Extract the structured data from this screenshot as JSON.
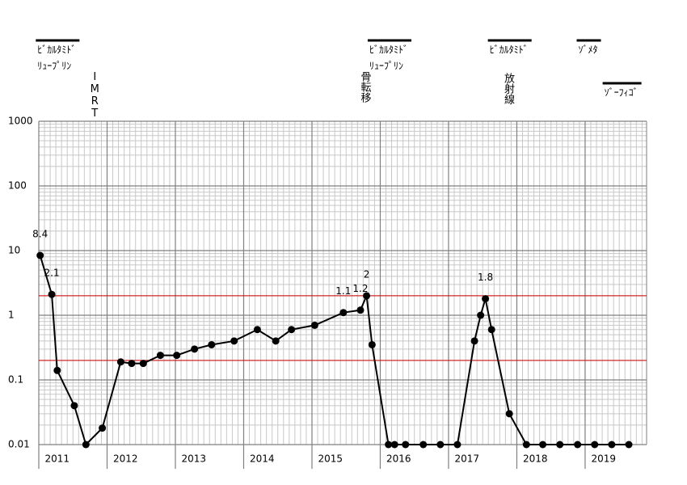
{
  "chart_data": {
    "type": "line",
    "log_scale": true,
    "grid": true,
    "color": "#000000",
    "reference_lines": [
      2,
      0.2
    ],
    "reference_color": "#d00000",
    "xlim": [
      2011,
      2019.9
    ],
    "xticks": [
      2011,
      2012,
      2013,
      2014,
      2015,
      2016,
      2017,
      2018,
      2019
    ],
    "ylim": [
      0.01,
      1000
    ],
    "yticks": [
      1000,
      100,
      10,
      1,
      0.1,
      0.01
    ],
    "x": [
      2011.02,
      2011.19,
      2011.27,
      2011.52,
      2011.69,
      2011.93,
      2012.2,
      2012.36,
      2012.53,
      2012.78,
      2013.02,
      2013.28,
      2013.53,
      2013.86,
      2014.2,
      2014.47,
      2014.7,
      2015.04,
      2015.46,
      2015.71,
      2015.8,
      2015.88,
      2016.12,
      2016.21,
      2016.37,
      2016.63,
      2016.88,
      2017.13,
      2017.38,
      2017.47,
      2017.54,
      2017.63,
      2017.89,
      2018.14,
      2018.38,
      2018.63,
      2018.89,
      2019.14,
      2019.39,
      2019.64
    ],
    "values": [
      8.4,
      2.1,
      0.14,
      0.04,
      0.01,
      0.018,
      0.19,
      0.18,
      0.18,
      0.24,
      0.24,
      0.3,
      0.35,
      0.4,
      0.6,
      0.4,
      0.6,
      0.7,
      1.1,
      1.2,
      2,
      0.35,
      0.01,
      0.01,
      0.01,
      0.01,
      0.01,
      0.01,
      0.4,
      1.0,
      1.8,
      0.6,
      0.03,
      0.01,
      0.01,
      0.01,
      0.01,
      0.01,
      0.01,
      0.01
    ],
    "value_labels": [
      "8.4",
      "2.1",
      null,
      null,
      null,
      null,
      null,
      null,
      null,
      null,
      null,
      null,
      null,
      null,
      null,
      null,
      null,
      null,
      "1.1",
      "1.2",
      "2",
      null,
      null,
      null,
      null,
      null,
      null,
      null,
      null,
      null,
      "1.8",
      null,
      null,
      null,
      null,
      null,
      null,
      null,
      null,
      null
    ],
    "annotations": [
      {
        "lines": [
          "ﾋﾞｶﾙﾀﾐﾄﾞ",
          "ﾘｭｰﾌﾟﾘﾝ"
        ],
        "x": 2010.98,
        "bar": true
      },
      {
        "lines": [
          "IMRT"
        ],
        "x": 2011.82,
        "vertical": true
      },
      {
        "lines": [
          "ﾋﾞｶﾙﾀﾐﾄﾞ",
          "ﾘｭｰﾌﾟﾘﾝ"
        ],
        "x": 2015.84,
        "bar": true
      },
      {
        "lines": [
          "骨転移"
        ],
        "x": 2015.77,
        "vertical": true
      },
      {
        "lines": [
          "ﾋﾞｶﾙﾀﾐﾄﾞ"
        ],
        "x": 2017.6,
        "bar": true
      },
      {
        "lines": [
          "放射線"
        ],
        "x": 2017.87,
        "vertical": true,
        "low": true
      },
      {
        "lines": [
          "ｿﾞﾒﾀ"
        ],
        "x": 2018.9,
        "bar": true
      },
      {
        "lines": [
          "ｿﾞｰﾌｨｺﾞ"
        ],
        "x": 2019.28,
        "bar": true,
        "low": true
      }
    ]
  }
}
